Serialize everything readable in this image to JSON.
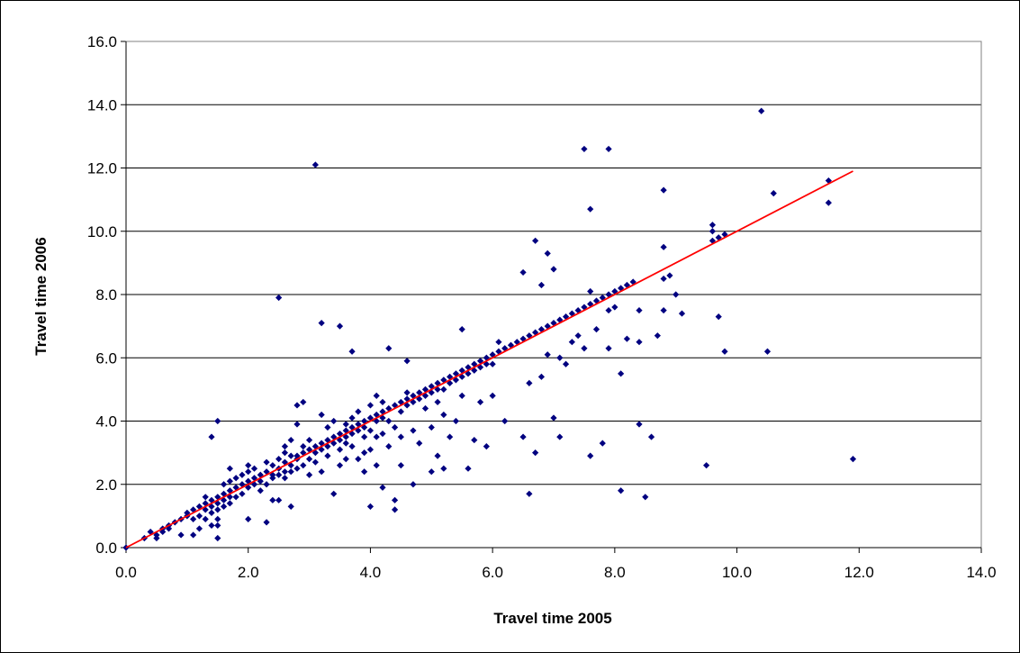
{
  "chart_data": {
    "type": "scatter",
    "title": "",
    "xlabel": "Travel time 2005",
    "ylabel": "Travel time 2006",
    "xlim": [
      0,
      14
    ],
    "ylim": [
      0,
      16
    ],
    "xticks": [
      "0.0",
      "2.0",
      "4.0",
      "6.0",
      "8.0",
      "10.0",
      "12.0",
      "14.0"
    ],
    "yticks": [
      "0.0",
      "2.0",
      "4.0",
      "6.0",
      "8.0",
      "10.0",
      "12.0",
      "14.0",
      "16.0"
    ],
    "grid": "horizontal",
    "legend": "none",
    "colors": {
      "points": "#000080",
      "trendline": "#ff0000",
      "grid": "#000000"
    },
    "trendline": {
      "x": [
        0.0,
        11.9
      ],
      "y": [
        0.0,
        11.9
      ]
    },
    "series": [
      {
        "points": [
          [
            0.0,
            0.0
          ],
          [
            0.3,
            0.3
          ],
          [
            0.4,
            0.5
          ],
          [
            0.5,
            0.4
          ],
          [
            0.5,
            0.3
          ],
          [
            0.6,
            0.6
          ],
          [
            0.6,
            0.5
          ],
          [
            0.7,
            0.7
          ],
          [
            0.7,
            0.6
          ],
          [
            0.8,
            0.8
          ],
          [
            0.9,
            0.9
          ],
          [
            0.9,
            0.4
          ],
          [
            1.0,
            1.0
          ],
          [
            1.0,
            1.1
          ],
          [
            1.1,
            1.2
          ],
          [
            1.1,
            0.9
          ],
          [
            1.1,
            0.4
          ],
          [
            1.2,
            1.3
          ],
          [
            1.2,
            1.0
          ],
          [
            1.2,
            0.6
          ],
          [
            1.3,
            1.4
          ],
          [
            1.3,
            1.2
          ],
          [
            1.3,
            0.9
          ],
          [
            1.3,
            1.6
          ],
          [
            1.4,
            1.5
          ],
          [
            1.4,
            1.1
          ],
          [
            1.4,
            3.5
          ],
          [
            1.4,
            0.7
          ],
          [
            1.4,
            1.3
          ],
          [
            1.5,
            1.6
          ],
          [
            1.5,
            1.4
          ],
          [
            1.5,
            0.9
          ],
          [
            1.5,
            0.3
          ],
          [
            1.5,
            4.0
          ],
          [
            1.5,
            1.2
          ],
          [
            1.5,
            0.7
          ],
          [
            1.6,
            1.7
          ],
          [
            1.6,
            1.5
          ],
          [
            1.6,
            2.0
          ],
          [
            1.6,
            1.3
          ],
          [
            1.7,
            1.8
          ],
          [
            1.7,
            1.6
          ],
          [
            1.7,
            2.5
          ],
          [
            1.7,
            1.4
          ],
          [
            1.7,
            2.1
          ],
          [
            1.8,
            1.9
          ],
          [
            1.8,
            1.6
          ],
          [
            1.8,
            2.2
          ],
          [
            1.9,
            2.0
          ],
          [
            1.9,
            2.3
          ],
          [
            1.9,
            1.7
          ],
          [
            2.0,
            2.1
          ],
          [
            2.0,
            2.6
          ],
          [
            2.0,
            1.9
          ],
          [
            2.0,
            0.9
          ],
          [
            2.0,
            2.4
          ],
          [
            2.1,
            2.2
          ],
          [
            2.1,
            2.0
          ],
          [
            2.1,
            2.5
          ],
          [
            2.2,
            2.3
          ],
          [
            2.2,
            1.8
          ],
          [
            2.2,
            2.1
          ],
          [
            2.3,
            2.4
          ],
          [
            2.3,
            2.0
          ],
          [
            2.3,
            0.8
          ],
          [
            2.3,
            2.7
          ],
          [
            2.4,
            2.3
          ],
          [
            2.4,
            2.6
          ],
          [
            2.4,
            1.5
          ],
          [
            2.4,
            2.2
          ],
          [
            2.5,
            2.5
          ],
          [
            2.5,
            7.9
          ],
          [
            2.5,
            2.3
          ],
          [
            2.5,
            1.5
          ],
          [
            2.5,
            2.8
          ],
          [
            2.6,
            2.4
          ],
          [
            2.6,
            2.7
          ],
          [
            2.6,
            2.2
          ],
          [
            2.6,
            3.2
          ],
          [
            2.6,
            3.0
          ],
          [
            2.7,
            2.6
          ],
          [
            2.7,
            2.9
          ],
          [
            2.7,
            2.4
          ],
          [
            2.7,
            1.3
          ],
          [
            2.7,
            3.4
          ],
          [
            2.8,
            2.8
          ],
          [
            2.8,
            3.9
          ],
          [
            2.8,
            2.5
          ],
          [
            2.8,
            4.5
          ],
          [
            2.8,
            2.9
          ],
          [
            2.9,
            3.0
          ],
          [
            2.9,
            2.6
          ],
          [
            2.9,
            4.6
          ],
          [
            2.9,
            3.2
          ],
          [
            3.0,
            3.1
          ],
          [
            3.0,
            2.8
          ],
          [
            3.0,
            2.3
          ],
          [
            3.0,
            3.4
          ],
          [
            3.1,
            3.2
          ],
          [
            3.1,
            3.0
          ],
          [
            3.1,
            12.1
          ],
          [
            3.1,
            2.7
          ],
          [
            3.2,
            3.3
          ],
          [
            3.2,
            3.1
          ],
          [
            3.2,
            7.1
          ],
          [
            3.2,
            2.4
          ],
          [
            3.2,
            4.2
          ],
          [
            3.3,
            3.4
          ],
          [
            3.3,
            3.2
          ],
          [
            3.3,
            3.8
          ],
          [
            3.3,
            2.9
          ],
          [
            3.4,
            3.5
          ],
          [
            3.4,
            3.3
          ],
          [
            3.4,
            1.7
          ],
          [
            3.4,
            4.0
          ],
          [
            3.5,
            3.6
          ],
          [
            3.5,
            3.4
          ],
          [
            3.5,
            7.0
          ],
          [
            3.5,
            3.1
          ],
          [
            3.5,
            2.6
          ],
          [
            3.6,
            3.7
          ],
          [
            3.6,
            3.5
          ],
          [
            3.6,
            3.9
          ],
          [
            3.6,
            2.8
          ],
          [
            3.6,
            3.3
          ],
          [
            3.7,
            3.8
          ],
          [
            3.7,
            3.6
          ],
          [
            3.7,
            6.2
          ],
          [
            3.7,
            3.2
          ],
          [
            3.7,
            4.1
          ],
          [
            3.8,
            3.9
          ],
          [
            3.8,
            3.7
          ],
          [
            3.8,
            4.3
          ],
          [
            3.8,
            2.8
          ],
          [
            3.9,
            4.0
          ],
          [
            3.9,
            3.8
          ],
          [
            3.9,
            3.5
          ],
          [
            3.9,
            2.4
          ],
          [
            3.9,
            3.0
          ],
          [
            4.0,
            4.1
          ],
          [
            4.0,
            1.3
          ],
          [
            4.0,
            3.7
          ],
          [
            4.0,
            4.5
          ],
          [
            4.0,
            3.1
          ],
          [
            4.1,
            4.2
          ],
          [
            4.1,
            4.0
          ],
          [
            4.1,
            4.8
          ],
          [
            4.1,
            3.5
          ],
          [
            4.1,
            2.6
          ],
          [
            4.2,
            4.3
          ],
          [
            4.2,
            4.1
          ],
          [
            4.2,
            1.9
          ],
          [
            4.2,
            4.6
          ],
          [
            4.2,
            3.6
          ],
          [
            4.3,
            6.3
          ],
          [
            4.3,
            4.4
          ],
          [
            4.3,
            4.0
          ],
          [
            4.3,
            3.2
          ],
          [
            4.4,
            1.5
          ],
          [
            4.4,
            1.2
          ],
          [
            4.4,
            4.5
          ],
          [
            4.4,
            3.8
          ],
          [
            4.5,
            4.6
          ],
          [
            4.5,
            4.3
          ],
          [
            4.5,
            3.5
          ],
          [
            4.5,
            2.6
          ],
          [
            4.6,
            5.9
          ],
          [
            4.6,
            4.7
          ],
          [
            4.6,
            4.5
          ],
          [
            4.6,
            4.9
          ],
          [
            4.7,
            4.8
          ],
          [
            4.7,
            4.6
          ],
          [
            4.7,
            2.0
          ],
          [
            4.7,
            3.7
          ],
          [
            4.8,
            4.9
          ],
          [
            4.8,
            4.7
          ],
          [
            4.8,
            3.3
          ],
          [
            4.9,
            5.0
          ],
          [
            4.9,
            4.8
          ],
          [
            4.9,
            4.4
          ],
          [
            5.0,
            5.1
          ],
          [
            5.0,
            4.9
          ],
          [
            5.0,
            2.4
          ],
          [
            5.0,
            3.8
          ],
          [
            5.1,
            5.2
          ],
          [
            5.1,
            5.0
          ],
          [
            5.1,
            2.9
          ],
          [
            5.1,
            4.6
          ],
          [
            5.2,
            5.3
          ],
          [
            5.2,
            5.0
          ],
          [
            5.2,
            2.5
          ],
          [
            5.2,
            4.2
          ],
          [
            5.3,
            5.4
          ],
          [
            5.3,
            5.2
          ],
          [
            5.3,
            3.5
          ],
          [
            5.4,
            5.5
          ],
          [
            5.4,
            5.3
          ],
          [
            5.4,
            4.0
          ],
          [
            5.5,
            5.6
          ],
          [
            5.5,
            5.4
          ],
          [
            5.5,
            6.9
          ],
          [
            5.5,
            4.8
          ],
          [
            5.6,
            2.5
          ],
          [
            5.6,
            5.7
          ],
          [
            5.6,
            5.5
          ],
          [
            5.7,
            5.8
          ],
          [
            5.7,
            5.6
          ],
          [
            5.7,
            3.4
          ],
          [
            5.8,
            5.9
          ],
          [
            5.8,
            5.7
          ],
          [
            5.8,
            4.6
          ],
          [
            5.9,
            6.0
          ],
          [
            5.9,
            5.8
          ],
          [
            5.9,
            3.2
          ],
          [
            6.0,
            6.1
          ],
          [
            6.0,
            5.8
          ],
          [
            6.0,
            4.8
          ],
          [
            6.1,
            6.5
          ],
          [
            6.1,
            6.2
          ],
          [
            6.2,
            6.3
          ],
          [
            6.2,
            4.0
          ],
          [
            6.3,
            6.4
          ],
          [
            6.4,
            6.5
          ],
          [
            6.5,
            3.5
          ],
          [
            6.5,
            8.7
          ],
          [
            6.5,
            6.6
          ],
          [
            6.6,
            1.7
          ],
          [
            6.6,
            6.7
          ],
          [
            6.6,
            5.2
          ],
          [
            6.7,
            6.8
          ],
          [
            6.7,
            3.0
          ],
          [
            6.7,
            9.7
          ],
          [
            6.8,
            6.9
          ],
          [
            6.8,
            8.3
          ],
          [
            6.8,
            5.4
          ],
          [
            6.9,
            7.0
          ],
          [
            6.9,
            9.3
          ],
          [
            6.9,
            6.1
          ],
          [
            7.0,
            8.8
          ],
          [
            7.0,
            7.1
          ],
          [
            7.0,
            4.1
          ],
          [
            7.1,
            7.2
          ],
          [
            7.1,
            3.5
          ],
          [
            7.1,
            6.0
          ],
          [
            7.2,
            7.3
          ],
          [
            7.2,
            5.8
          ],
          [
            7.3,
            7.4
          ],
          [
            7.3,
            6.5
          ],
          [
            7.4,
            7.5
          ],
          [
            7.4,
            6.7
          ],
          [
            7.5,
            12.6
          ],
          [
            7.5,
            7.6
          ],
          [
            7.5,
            6.3
          ],
          [
            7.6,
            10.7
          ],
          [
            7.6,
            7.7
          ],
          [
            7.6,
            8.1
          ],
          [
            7.6,
            2.9
          ],
          [
            7.7,
            7.8
          ],
          [
            7.7,
            6.9
          ],
          [
            7.8,
            7.9
          ],
          [
            7.8,
            3.3
          ],
          [
            7.9,
            12.6
          ],
          [
            7.9,
            8.0
          ],
          [
            7.9,
            7.5
          ],
          [
            7.9,
            6.3
          ],
          [
            8.0,
            8.1
          ],
          [
            8.0,
            7.6
          ],
          [
            8.1,
            8.2
          ],
          [
            8.1,
            5.5
          ],
          [
            8.1,
            1.8
          ],
          [
            8.2,
            8.3
          ],
          [
            8.2,
            6.6
          ],
          [
            8.3,
            8.4
          ],
          [
            8.4,
            3.9
          ],
          [
            8.4,
            7.5
          ],
          [
            8.4,
            6.5
          ],
          [
            8.5,
            1.6
          ],
          [
            8.6,
            3.5
          ],
          [
            8.7,
            6.7
          ],
          [
            8.8,
            11.3
          ],
          [
            8.8,
            9.5
          ],
          [
            8.8,
            8.5
          ],
          [
            8.8,
            7.5
          ],
          [
            8.9,
            8.6
          ],
          [
            9.0,
            8.0
          ],
          [
            9.1,
            7.4
          ],
          [
            9.5,
            2.6
          ],
          [
            9.6,
            9.7
          ],
          [
            9.6,
            10.2
          ],
          [
            9.6,
            10.0
          ],
          [
            9.7,
            7.3
          ],
          [
            9.7,
            9.8
          ],
          [
            9.8,
            6.2
          ],
          [
            9.8,
            9.9
          ],
          [
            10.4,
            13.8
          ],
          [
            10.5,
            6.2
          ],
          [
            10.6,
            11.2
          ],
          [
            11.5,
            10.9
          ],
          [
            11.5,
            11.6
          ],
          [
            11.9,
            2.8
          ]
        ]
      }
    ]
  }
}
